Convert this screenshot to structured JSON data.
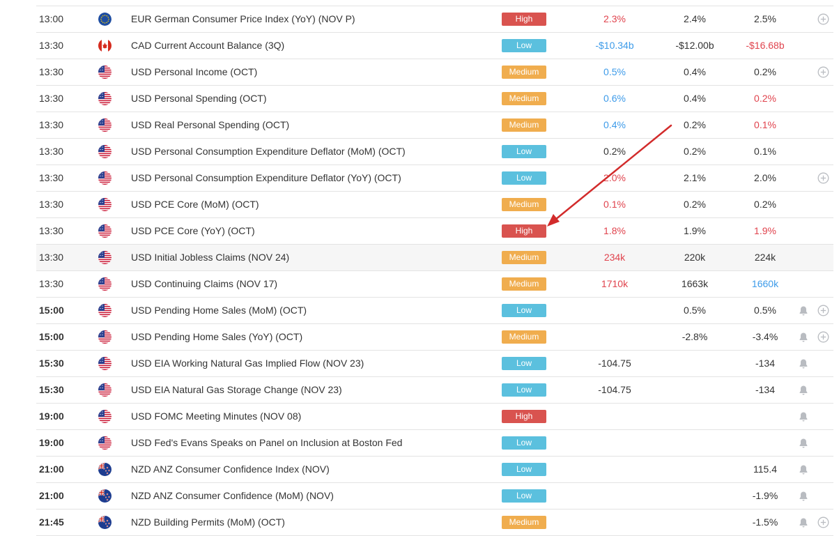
{
  "colors": {
    "high": "#d9534f",
    "low": "#5bc0de",
    "medium": "#f0ad4e",
    "value_red": "#e0434d",
    "value_blue": "#3d9be9",
    "annotation_arrow": "#d22b2b"
  },
  "rows": [
    {
      "time": "13:00",
      "country": "eu",
      "event": "EUR German Consumer Price Index (YoY) (NOV P)",
      "impact": "High",
      "actual": "2.3%",
      "actual_color": "red",
      "forecast": "2.4%",
      "previous": "2.5%",
      "previous_color": "dark",
      "bell": false,
      "plus": true
    },
    {
      "time": "13:30",
      "country": "ca",
      "event": "CAD Current Account Balance (3Q)",
      "impact": "Low",
      "actual": "-$10.34b",
      "actual_color": "blue",
      "forecast": "-$12.00b",
      "previous": "-$16.68b",
      "previous_color": "red",
      "bell": false,
      "plus": false
    },
    {
      "time": "13:30",
      "country": "us",
      "event": "USD Personal Income (OCT)",
      "impact": "Medium",
      "actual": "0.5%",
      "actual_color": "blue",
      "forecast": "0.4%",
      "previous": "0.2%",
      "previous_color": "dark",
      "bell": false,
      "plus": true
    },
    {
      "time": "13:30",
      "country": "us",
      "event": "USD Personal Spending (OCT)",
      "impact": "Medium",
      "actual": "0.6%",
      "actual_color": "blue",
      "forecast": "0.4%",
      "previous": "0.2%",
      "previous_color": "red",
      "bell": false,
      "plus": false
    },
    {
      "time": "13:30",
      "country": "us",
      "event": "USD Real Personal Spending (OCT)",
      "impact": "Medium",
      "actual": "0.4%",
      "actual_color": "blue",
      "forecast": "0.2%",
      "previous": "0.1%",
      "previous_color": "red",
      "bell": false,
      "plus": false
    },
    {
      "time": "13:30",
      "country": "us",
      "event": "USD Personal Consumption Expenditure Deflator (MoM) (OCT)",
      "impact": "Low",
      "actual": "0.2%",
      "actual_color": "dark",
      "forecast": "0.2%",
      "previous": "0.1%",
      "previous_color": "dark",
      "bell": false,
      "plus": false
    },
    {
      "time": "13:30",
      "country": "us",
      "event": "USD Personal Consumption Expenditure Deflator (YoY) (OCT)",
      "impact": "Low",
      "actual": "2.0%",
      "actual_color": "red",
      "forecast": "2.1%",
      "previous": "2.0%",
      "previous_color": "dark",
      "bell": false,
      "plus": true
    },
    {
      "time": "13:30",
      "country": "us",
      "event": "USD PCE Core (MoM) (OCT)",
      "impact": "Medium",
      "actual": "0.1%",
      "actual_color": "red",
      "forecast": "0.2%",
      "previous": "0.2%",
      "previous_color": "dark",
      "bell": false,
      "plus": false
    },
    {
      "time": "13:30",
      "country": "us",
      "event": "USD PCE Core (YoY) (OCT)",
      "impact": "High",
      "actual": "1.8%",
      "actual_color": "red",
      "forecast": "1.9%",
      "previous": "1.9%",
      "previous_color": "red",
      "bell": false,
      "plus": false
    },
    {
      "time": "13:30",
      "country": "us",
      "event": "USD Initial Jobless Claims (NOV 24)",
      "impact": "Medium",
      "actual": "234k",
      "actual_color": "red",
      "forecast": "220k",
      "previous": "224k",
      "previous_color": "dark",
      "bell": false,
      "plus": false,
      "highlight": true
    },
    {
      "time": "13:30",
      "country": "us",
      "event": "USD Continuing Claims (NOV 17)",
      "impact": "Medium",
      "actual": "1710k",
      "actual_color": "red",
      "forecast": "1663k",
      "previous": "1660k",
      "previous_color": "blue",
      "bell": false,
      "plus": false
    },
    {
      "time": "15:00",
      "bold": true,
      "country": "us",
      "event": "USD Pending Home Sales (MoM) (OCT)",
      "impact": "Low",
      "actual": "",
      "actual_color": "dark",
      "forecast": "0.5%",
      "previous": "0.5%",
      "previous_color": "dark",
      "bell": true,
      "plus": true
    },
    {
      "time": "15:00",
      "bold": true,
      "country": "us",
      "event": "USD Pending Home Sales (YoY) (OCT)",
      "impact": "Medium",
      "actual": "",
      "actual_color": "dark",
      "forecast": "-2.8%",
      "previous": "-3.4%",
      "previous_color": "dark",
      "bell": true,
      "plus": true
    },
    {
      "time": "15:30",
      "bold": true,
      "country": "us",
      "event": "USD EIA Working Natural Gas Implied Flow (NOV 23)",
      "impact": "Low",
      "actual": "-104.75",
      "actual_color": "dark",
      "forecast": "",
      "previous": "-134",
      "previous_color": "dark",
      "bell": true,
      "plus": false
    },
    {
      "time": "15:30",
      "bold": true,
      "country": "us",
      "event": "USD EIA Natural Gas Storage Change (NOV 23)",
      "impact": "Low",
      "actual": "-104.75",
      "actual_color": "dark",
      "forecast": "",
      "previous": "-134",
      "previous_color": "dark",
      "bell": true,
      "plus": false
    },
    {
      "time": "19:00",
      "bold": true,
      "country": "us",
      "event": "USD FOMC Meeting Minutes (NOV 08)",
      "impact": "High",
      "actual": "",
      "actual_color": "dark",
      "forecast": "",
      "previous": "",
      "previous_color": "dark",
      "bell": true,
      "plus": false
    },
    {
      "time": "19:00",
      "bold": true,
      "country": "us",
      "event": "USD Fed's Evans Speaks on Panel on Inclusion at Boston Fed",
      "impact": "Low",
      "actual": "",
      "actual_color": "dark",
      "forecast": "",
      "previous": "",
      "previous_color": "dark",
      "bell": true,
      "plus": false
    },
    {
      "time": "21:00",
      "bold": true,
      "country": "nz",
      "event": "NZD ANZ Consumer Confidence Index (NOV)",
      "impact": "Low",
      "actual": "",
      "actual_color": "dark",
      "forecast": "",
      "previous": "115.4",
      "previous_color": "dark",
      "bell": true,
      "plus": false
    },
    {
      "time": "21:00",
      "bold": true,
      "country": "nz",
      "event": "NZD ANZ Consumer Confidence (MoM) (NOV)",
      "impact": "Low",
      "actual": "",
      "actual_color": "dark",
      "forecast": "",
      "previous": "-1.9%",
      "previous_color": "dark",
      "bell": true,
      "plus": false
    },
    {
      "time": "21:45",
      "bold": true,
      "country": "nz",
      "event": "NZD Building Permits (MoM) (OCT)",
      "impact": "Medium",
      "actual": "",
      "actual_color": "dark",
      "forecast": "",
      "previous": "-1.5%",
      "previous_color": "dark",
      "bell": true,
      "plus": true
    }
  ]
}
